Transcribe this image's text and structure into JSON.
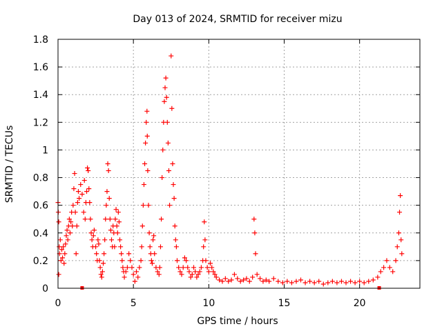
{
  "chart_data": {
    "type": "scatter",
    "title": "Day 013 of 2024, SRMTID for receiver mizu",
    "xlabel": "GPS time / hours",
    "ylabel": "SRMTID / TECUs",
    "xlim": [
      0,
      24
    ],
    "ylim": [
      0,
      1.8
    ],
    "x_ticks": [
      0,
      5,
      10,
      15,
      20
    ],
    "x_tick_labels": [
      "0",
      "5",
      "10",
      "15",
      "20"
    ],
    "y_ticks": [
      0,
      0.2,
      0.4,
      0.6,
      0.8,
      1,
      1.2,
      1.4,
      1.6,
      1.8
    ],
    "y_tick_labels": [
      "0",
      "0.2",
      "0.4",
      "0.6",
      "0.8",
      "1",
      "1.2",
      "1.4",
      "1.6",
      "1.8"
    ],
    "grid": true,
    "marker": "plus",
    "marker_color": "#ff0000",
    "baseline_markers": [
      1.6,
      21.3
    ],
    "series": [
      {
        "name": "SRMTID",
        "points": [
          [
            0.0,
            0.62
          ],
          [
            0.02,
            0.55
          ],
          [
            0.05,
            0.48
          ],
          [
            0.05,
            0.1
          ],
          [
            0.08,
            0.3
          ],
          [
            0.1,
            0.25
          ],
          [
            0.15,
            0.35
          ],
          [
            0.2,
            0.2
          ],
          [
            0.25,
            0.28
          ],
          [
            0.3,
            0.22
          ],
          [
            0.35,
            0.3
          ],
          [
            0.4,
            0.18
          ],
          [
            0.45,
            0.25
          ],
          [
            0.5,
            0.32
          ],
          [
            0.55,
            0.38
          ],
          [
            0.6,
            0.42
          ],
          [
            0.65,
            0.35
          ],
          [
            0.7,
            0.45
          ],
          [
            0.75,
            0.5
          ],
          [
            0.8,
            0.4
          ],
          [
            0.85,
            0.48
          ],
          [
            0.9,
            0.55
          ],
          [
            0.95,
            0.45
          ],
          [
            1.0,
            0.6
          ],
          [
            1.05,
            0.72
          ],
          [
            1.1,
            0.83
          ],
          [
            1.15,
            0.55
          ],
          [
            1.2,
            0.25
          ],
          [
            1.25,
            0.45
          ],
          [
            1.3,
            0.62
          ],
          [
            1.35,
            0.7
          ],
          [
            1.4,
            0.65
          ],
          [
            1.5,
            0.75
          ],
          [
            1.6,
            0.68
          ],
          [
            1.7,
            0.55
          ],
          [
            1.75,
            0.78
          ],
          [
            1.8,
            0.5
          ],
          [
            1.85,
            0.62
          ],
          [
            1.9,
            0.7
          ],
          [
            1.95,
            0.87
          ],
          [
            2.0,
            0.85
          ],
          [
            2.05,
            0.72
          ],
          [
            2.1,
            0.62
          ],
          [
            2.15,
            0.5
          ],
          [
            2.2,
            0.4
          ],
          [
            2.25,
            0.35
          ],
          [
            2.3,
            0.3
          ],
          [
            2.35,
            0.38
          ],
          [
            2.4,
            0.42
          ],
          [
            2.5,
            0.3
          ],
          [
            2.55,
            0.25
          ],
          [
            2.6,
            0.2
          ],
          [
            2.65,
            0.35
          ],
          [
            2.7,
            0.32
          ],
          [
            2.75,
            0.2
          ],
          [
            2.8,
            0.15
          ],
          [
            2.85,
            0.1
          ],
          [
            2.9,
            0.08
          ],
          [
            2.95,
            0.12
          ],
          [
            3.0,
            0.18
          ],
          [
            3.05,
            0.25
          ],
          [
            3.1,
            0.35
          ],
          [
            3.15,
            0.5
          ],
          [
            3.2,
            0.6
          ],
          [
            3.25,
            0.7
          ],
          [
            3.3,
            0.9
          ],
          [
            3.35,
            0.85
          ],
          [
            3.4,
            0.65
          ],
          [
            3.45,
            0.5
          ],
          [
            3.5,
            0.42
          ],
          [
            3.55,
            0.35
          ],
          [
            3.6,
            0.3
          ],
          [
            3.65,
            0.45
          ],
          [
            3.7,
            0.4
          ],
          [
            3.75,
            0.3
          ],
          [
            3.8,
            0.5
          ],
          [
            3.85,
            0.57
          ],
          [
            3.9,
            0.45
          ],
          [
            3.95,
            0.4
          ],
          [
            4.0,
            0.55
          ],
          [
            4.05,
            0.48
          ],
          [
            4.1,
            0.35
          ],
          [
            4.15,
            0.3
          ],
          [
            4.2,
            0.25
          ],
          [
            4.25,
            0.2
          ],
          [
            4.3,
            0.15
          ],
          [
            4.35,
            0.12
          ],
          [
            4.4,
            0.08
          ],
          [
            4.5,
            0.12
          ],
          [
            4.6,
            0.15
          ],
          [
            4.7,
            0.25
          ],
          [
            4.8,
            0.2
          ],
          [
            4.9,
            0.15
          ],
          [
            5.0,
            0.1
          ],
          [
            5.1,
            0.05
          ],
          [
            5.2,
            0.12
          ],
          [
            5.3,
            0.08
          ],
          [
            5.4,
            0.15
          ],
          [
            5.5,
            0.2
          ],
          [
            5.55,
            0.3
          ],
          [
            5.6,
            0.45
          ],
          [
            5.65,
            0.6
          ],
          [
            5.7,
            0.75
          ],
          [
            5.75,
            0.9
          ],
          [
            5.8,
            1.05
          ],
          [
            5.85,
            1.2
          ],
          [
            5.9,
            1.28
          ],
          [
            5.92,
            1.1
          ],
          [
            5.95,
            0.85
          ],
          [
            6.0,
            0.6
          ],
          [
            6.05,
            0.4
          ],
          [
            6.1,
            0.3
          ],
          [
            6.15,
            0.25
          ],
          [
            6.2,
            0.2
          ],
          [
            6.25,
            0.18
          ],
          [
            6.3,
            0.35
          ],
          [
            6.35,
            0.38
          ],
          [
            6.4,
            0.25
          ],
          [
            6.5,
            0.15
          ],
          [
            6.6,
            0.12
          ],
          [
            6.7,
            0.1
          ],
          [
            6.75,
            0.15
          ],
          [
            6.8,
            0.3
          ],
          [
            6.85,
            0.5
          ],
          [
            6.9,
            0.8
          ],
          [
            6.95,
            1.0
          ],
          [
            7.0,
            1.2
          ],
          [
            7.05,
            1.35
          ],
          [
            7.1,
            1.45
          ],
          [
            7.15,
            1.52
          ],
          [
            7.2,
            1.38
          ],
          [
            7.25,
            1.2
          ],
          [
            7.3,
            1.05
          ],
          [
            7.35,
            0.85
          ],
          [
            7.4,
            0.6
          ],
          [
            7.5,
            1.68
          ],
          [
            7.55,
            1.3
          ],
          [
            7.6,
            0.9
          ],
          [
            7.65,
            0.75
          ],
          [
            7.7,
            0.65
          ],
          [
            7.75,
            0.45
          ],
          [
            7.8,
            0.35
          ],
          [
            7.85,
            0.3
          ],
          [
            7.9,
            0.2
          ],
          [
            8.0,
            0.15
          ],
          [
            8.1,
            0.12
          ],
          [
            8.2,
            0.1
          ],
          [
            8.3,
            0.15
          ],
          [
            8.4,
            0.22
          ],
          [
            8.5,
            0.2
          ],
          [
            8.6,
            0.15
          ],
          [
            8.7,
            0.12
          ],
          [
            8.8,
            0.08
          ],
          [
            8.9,
            0.1
          ],
          [
            9.0,
            0.15
          ],
          [
            9.1,
            0.12
          ],
          [
            9.2,
            0.08
          ],
          [
            9.3,
            0.1
          ],
          [
            9.4,
            0.12
          ],
          [
            9.5,
            0.15
          ],
          [
            9.6,
            0.2
          ],
          [
            9.65,
            0.3
          ],
          [
            9.7,
            0.48
          ],
          [
            9.75,
            0.35
          ],
          [
            9.8,
            0.2
          ],
          [
            9.9,
            0.15
          ],
          [
            10.0,
            0.12
          ],
          [
            10.1,
            0.18
          ],
          [
            10.2,
            0.15
          ],
          [
            10.3,
            0.12
          ],
          [
            10.4,
            0.1
          ],
          [
            10.5,
            0.08
          ],
          [
            10.7,
            0.06
          ],
          [
            10.9,
            0.05
          ],
          [
            11.1,
            0.07
          ],
          [
            11.3,
            0.05
          ],
          [
            11.5,
            0.06
          ],
          [
            11.7,
            0.1
          ],
          [
            11.9,
            0.07
          ],
          [
            12.1,
            0.05
          ],
          [
            12.3,
            0.06
          ],
          [
            12.5,
            0.07
          ],
          [
            12.7,
            0.05
          ],
          [
            12.9,
            0.08
          ],
          [
            13.0,
            0.5
          ],
          [
            13.05,
            0.4
          ],
          [
            13.1,
            0.25
          ],
          [
            13.2,
            0.1
          ],
          [
            13.4,
            0.07
          ],
          [
            13.6,
            0.05
          ],
          [
            13.8,
            0.06
          ],
          [
            14.0,
            0.05
          ],
          [
            14.3,
            0.07
          ],
          [
            14.6,
            0.05
          ],
          [
            14.9,
            0.04
          ],
          [
            15.2,
            0.05
          ],
          [
            15.5,
            0.04
          ],
          [
            15.8,
            0.05
          ],
          [
            16.1,
            0.06
          ],
          [
            16.4,
            0.04
          ],
          [
            16.7,
            0.05
          ],
          [
            17.0,
            0.04
          ],
          [
            17.3,
            0.05
          ],
          [
            17.6,
            0.03
          ],
          [
            17.9,
            0.04
          ],
          [
            18.2,
            0.05
          ],
          [
            18.5,
            0.04
          ],
          [
            18.8,
            0.05
          ],
          [
            19.1,
            0.04
          ],
          [
            19.4,
            0.05
          ],
          [
            19.7,
            0.04
          ],
          [
            20.0,
            0.05
          ],
          [
            20.3,
            0.04
          ],
          [
            20.6,
            0.05
          ],
          [
            20.9,
            0.06
          ],
          [
            21.2,
            0.08
          ],
          [
            21.4,
            0.12
          ],
          [
            21.6,
            0.15
          ],
          [
            21.8,
            0.2
          ],
          [
            22.0,
            0.15
          ],
          [
            22.2,
            0.12
          ],
          [
            22.4,
            0.2
          ],
          [
            22.5,
            0.3
          ],
          [
            22.6,
            0.4
          ],
          [
            22.65,
            0.55
          ],
          [
            22.7,
            0.67
          ],
          [
            22.75,
            0.35
          ],
          [
            22.8,
            0.25
          ]
        ]
      }
    ]
  }
}
